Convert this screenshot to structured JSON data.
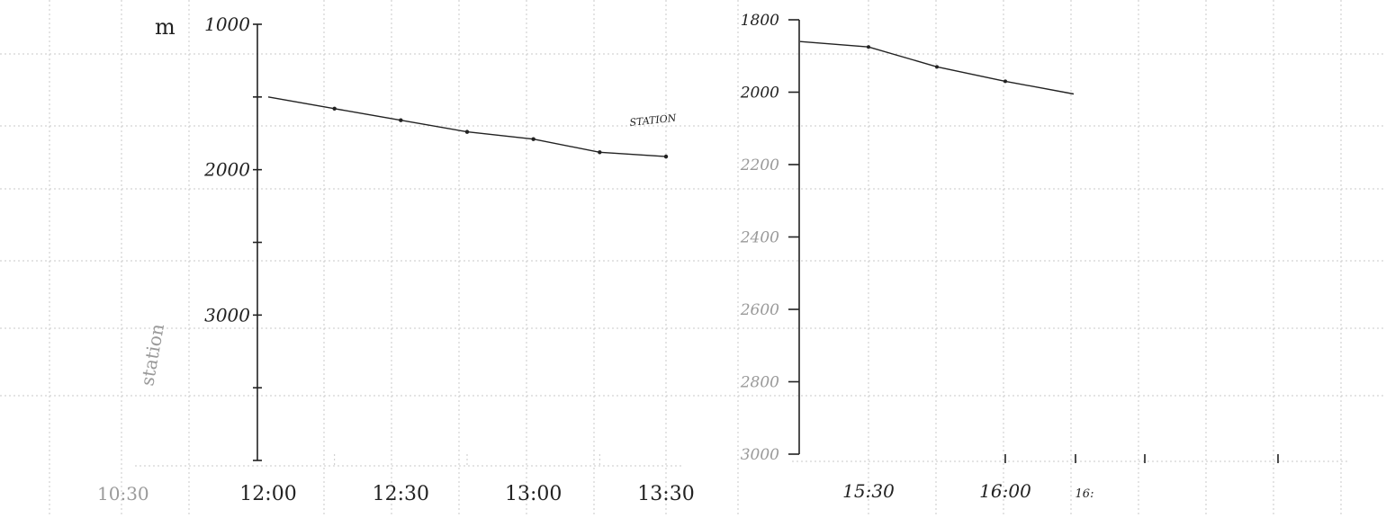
{
  "chart_data": [
    {
      "type": "line",
      "y_unit": "m",
      "y_inverted": true,
      "ylim": [
        1000,
        4000
      ],
      "yticks": [
        1000,
        2000,
        3000
      ],
      "y_tick_labels": [
        "1000",
        "2000",
        "3000"
      ],
      "x_tick_labels": [
        "12:00",
        "12:30",
        "13:00",
        "13:30"
      ],
      "x_extra_faint_labels": [
        "10:30"
      ],
      "y_faint_annotation": "station",
      "annotation": "STATION",
      "series": [
        {
          "x": [
            "12:00",
            "12:15",
            "12:30",
            "12:45",
            "13:00",
            "13:15",
            "13:30"
          ],
          "values": [
            1500,
            1580,
            1660,
            1740,
            1790,
            1880,
            1910
          ]
        }
      ]
    },
    {
      "type": "line",
      "y_inverted": true,
      "ylim": [
        1800,
        3000
      ],
      "yticks": [
        1800,
        2000,
        2200,
        2400,
        2600,
        2800,
        3000
      ],
      "y_tick_labels": [
        "1800",
        "2000",
        "2200",
        "2400",
        "2600",
        "2800",
        "3000"
      ],
      "x_tick_labels": [
        "15:30",
        "16:00",
        "16:"
      ],
      "series": [
        {
          "x": [
            "15:15",
            "15:30",
            "15:45",
            "16:00",
            "16:15"
          ],
          "values": [
            1860,
            1875,
            1930,
            1970,
            2005
          ]
        }
      ]
    }
  ]
}
